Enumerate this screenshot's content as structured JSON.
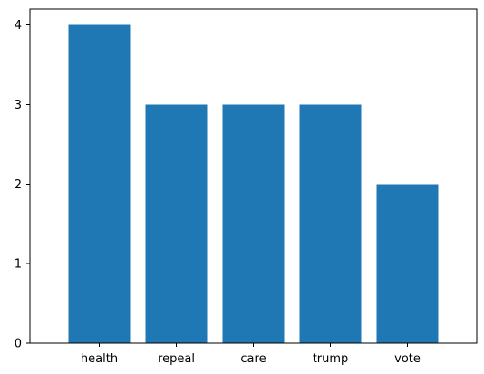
{
  "chart_data": {
    "type": "bar",
    "title": "",
    "xlabel": "",
    "ylabel": "",
    "categories": [
      "health",
      "repeal",
      "care",
      "trump",
      "vote"
    ],
    "values": [
      4,
      3,
      3,
      3,
      2
    ],
    "ylim": [
      0,
      4.2
    ],
    "yticks": [
      0,
      1,
      2,
      3,
      4
    ],
    "grid": false,
    "legend": "none",
    "bar_color": "#1f77b4"
  }
}
